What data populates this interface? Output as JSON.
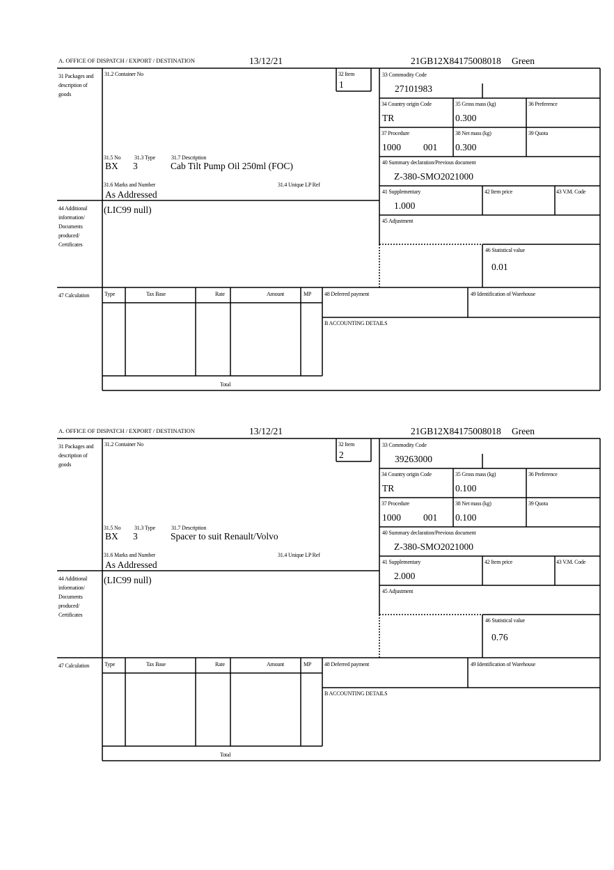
{
  "labels": {
    "office": "A. OFFICE OF DISPATCH / EXPORT / DESTINATION",
    "l31": "31 Packages and description of goods",
    "l312": "31.2 Container No",
    "l32": "32 Item",
    "l315": "31.5 No",
    "l313": "31.3 Type",
    "l317": "31.7 Description",
    "l316": "31.6 Marks and Number",
    "l314": "31.4 Unique LP Ref",
    "l33": "33 Commodity Code",
    "l34": "34 Country origin Code",
    "l35": "35 Gross mass (kg)",
    "l36": "36 Preference",
    "l37": "37 Procedure",
    "l38": "38 Net mass (kg)",
    "l39": "39 Quota",
    "l40": "40 Summary declaration/Previous document",
    "l41": "41 Supplementary",
    "l42": "42 Item price",
    "l43": "43 V.M. Code",
    "l44": "44 Additional information/ Documents produced/ Certificates",
    "l45": "45 Adjustment",
    "l46": "46 Statistical value",
    "l47": "47 Calculation",
    "type": "Type",
    "taxbase": "Tax Base",
    "rate": "Rate",
    "amount": "Amount",
    "mp": "MP",
    "l48": "48 Deferred payment",
    "l49": "49 Identification of Warehouse",
    "accounting": "B ACCOUNTING DETAILS",
    "total": "Total"
  },
  "items": [
    {
      "date": "13/12/21",
      "reference": "21GB12X84175008018",
      "status": "Green",
      "item_no": "1",
      "no": "BX",
      "type": "3",
      "description": "Cab Tilt Pump Oil 250ml (FOC)",
      "marks": "As Addressed",
      "commodity_code": "27101983",
      "country_origin": "TR",
      "gross_mass": "0.300",
      "procedure": "1000",
      "procedure_extra": "001",
      "net_mass": "0.300",
      "previous_document": "Z-380-SMO2021000",
      "supplementary": "1.000",
      "additional_info": "(LIC99 null)",
      "statistical_value": "0.01"
    },
    {
      "date": "13/12/21",
      "reference": "21GB12X84175008018",
      "status": "Green",
      "item_no": "2",
      "no": "BX",
      "type": "3",
      "description": "Spacer to suit Renault/Volvo",
      "marks": "As Addressed",
      "commodity_code": "39263000",
      "country_origin": "TR",
      "gross_mass": "0.100",
      "procedure": "1000",
      "procedure_extra": "001",
      "net_mass": "0.100",
      "previous_document": "Z-380-SMO2021000",
      "supplementary": "2.000",
      "additional_info": "(LIC99 null)",
      "statistical_value": "0.76"
    }
  ]
}
